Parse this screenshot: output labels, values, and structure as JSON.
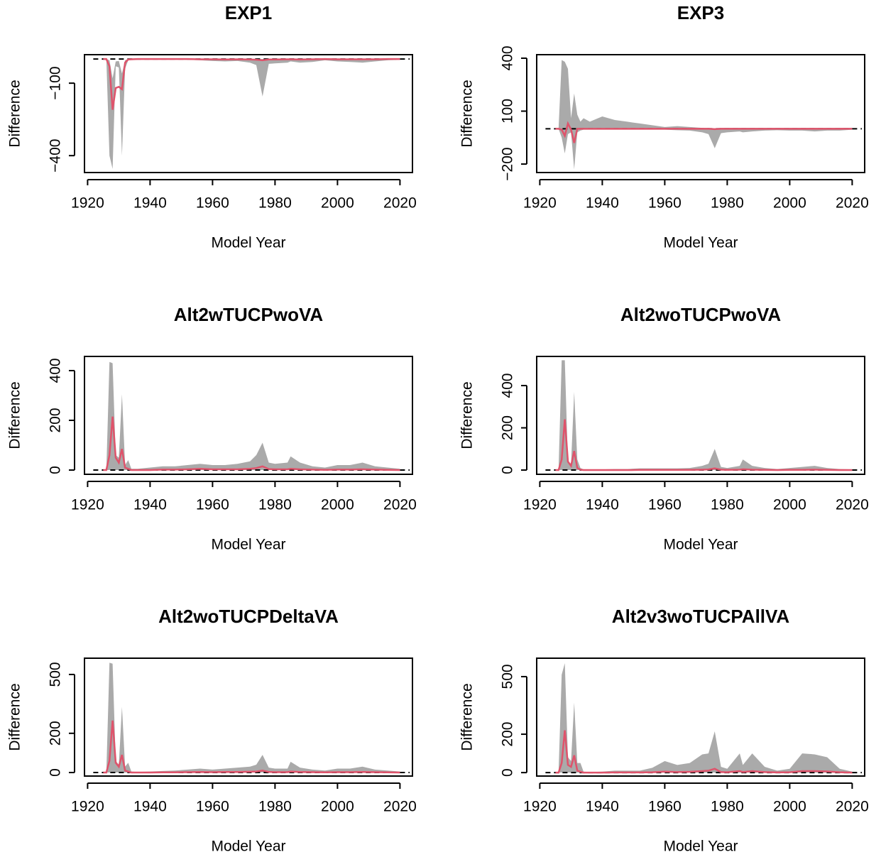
{
  "chart_data": [
    {
      "type": "line",
      "title": "EXP1",
      "x_label": "Model Year",
      "y_label": "Difference",
      "xlim": [
        1919,
        2024
      ],
      "xticks": [
        1920,
        1940,
        1960,
        1980,
        2000,
        2020
      ],
      "ylim": [
        -470,
        18
      ],
      "yticks": [
        {
          "value": -100,
          "label": "−100"
        },
        {
          "value": -400,
          "label": "−400"
        }
      ],
      "x": [
        1925,
        1926,
        1927,
        1928,
        1929,
        1930,
        1931,
        1932,
        1933,
        1934,
        1936,
        1940,
        1944,
        1948,
        1952,
        1956,
        1960,
        1964,
        1968,
        1972,
        1974,
        1976,
        1978,
        1980,
        1984,
        1985,
        1988,
        1992,
        1996,
        2000,
        2004,
        2008,
        2012,
        2016,
        2020
      ],
      "band": {
        "color": "#aaaaaa",
        "lower": [
          0,
          0,
          -400,
          -455,
          -30,
          -35,
          -400,
          -40,
          -5,
          -2,
          -1,
          -1,
          -2,
          -2,
          -3,
          -5,
          -8,
          -10,
          -8,
          -15,
          -25,
          -155,
          -20,
          -18,
          -15,
          -10,
          -15,
          -12,
          -5,
          -10,
          -12,
          -15,
          -10,
          -5,
          -3
        ],
        "upper": [
          0,
          0,
          -5,
          -80,
          -10,
          -8,
          -60,
          -5,
          0,
          0,
          0,
          0,
          0,
          0,
          0,
          0,
          0,
          0,
          0,
          0,
          0,
          0,
          0,
          0,
          0,
          0,
          0,
          0,
          0,
          0,
          0,
          0,
          0,
          0,
          0
        ]
      },
      "line": {
        "color": "#df536b",
        "values": [
          0,
          0,
          -30,
          -210,
          -120,
          -115,
          -125,
          -15,
          -2,
          -1,
          0,
          0,
          0,
          0,
          0,
          -1,
          -1,
          -2,
          -1,
          -2,
          -3,
          -5,
          -2,
          -2,
          -1,
          -1,
          -2,
          -1,
          0,
          -1,
          -1,
          -1,
          -1,
          0,
          0
        ]
      },
      "hline": 0
    },
    {
      "type": "line",
      "title": "EXP3",
      "x_label": "Model Year",
      "y_label": "Difference",
      "xlim": [
        1919,
        2024
      ],
      "xticks": [
        1920,
        1940,
        1960,
        1980,
        2000,
        2020
      ],
      "ylim": [
        -248,
        420
      ],
      "yticks": [
        400,
        100,
        {
          "value": -200,
          "label": "−200"
        }
      ],
      "x": [
        1925,
        1926,
        1927,
        1928,
        1929,
        1930,
        1931,
        1932,
        1933,
        1934,
        1936,
        1940,
        1944,
        1948,
        1952,
        1956,
        1960,
        1964,
        1968,
        1972,
        1974,
        1976,
        1978,
        1980,
        1984,
        1985,
        1988,
        1992,
        1996,
        2000,
        2004,
        2008,
        2012,
        2016,
        2020
      ],
      "band": {
        "color": "#aaaaaa",
        "lower": [
          0,
          0,
          -50,
          -140,
          -30,
          -20,
          -230,
          -20,
          -10,
          -5,
          -5,
          -5,
          -5,
          -5,
          -5,
          -5,
          -5,
          -8,
          -10,
          -20,
          -30,
          -110,
          -25,
          -20,
          -15,
          -20,
          -15,
          -10,
          -8,
          -10,
          -10,
          -15,
          -10,
          -10,
          -5
        ],
        "upper": [
          0,
          0,
          390,
          380,
          340,
          60,
          200,
          80,
          40,
          60,
          40,
          70,
          50,
          40,
          30,
          20,
          10,
          15,
          10,
          5,
          5,
          0,
          5,
          5,
          5,
          5,
          5,
          5,
          5,
          5,
          5,
          5,
          5,
          5,
          5
        ]
      },
      "line": {
        "color": "#df536b",
        "values": [
          0,
          0,
          -5,
          -40,
          30,
          -5,
          -80,
          0,
          0,
          0,
          0,
          0,
          0,
          0,
          0,
          0,
          0,
          0,
          0,
          0,
          0,
          -2,
          0,
          0,
          0,
          0,
          0,
          0,
          0,
          0,
          0,
          0,
          0,
          0,
          0
        ]
      },
      "hline": 0
    },
    {
      "type": "line",
      "title": "Alt2wTUCPwoVA",
      "x_label": "Model Year",
      "y_label": "Difference",
      "xlim": [
        1919,
        2024
      ],
      "xticks": [
        1920,
        1940,
        1960,
        1980,
        2000,
        2020
      ],
      "ylim": [
        -17,
        457
      ],
      "yticks": [
        0,
        200,
        400
      ],
      "x": [
        1925,
        1926,
        1927,
        1928,
        1929,
        1930,
        1931,
        1932,
        1933,
        1934,
        1936,
        1940,
        1944,
        1948,
        1952,
        1956,
        1960,
        1964,
        1968,
        1972,
        1974,
        1976,
        1978,
        1980,
        1984,
        1985,
        1988,
        1992,
        1996,
        2000,
        2004,
        2008,
        2012,
        2016,
        2020
      ],
      "band": {
        "color": "#aaaaaa",
        "lower": [
          0,
          0,
          0,
          0,
          0,
          0,
          0,
          0,
          0,
          0,
          0,
          0,
          0,
          0,
          0,
          0,
          0,
          0,
          0,
          0,
          0,
          0,
          0,
          0,
          0,
          0,
          0,
          0,
          0,
          0,
          0,
          0,
          0,
          0,
          0
        ],
        "upper": [
          0,
          0,
          435,
          430,
          60,
          50,
          305,
          20,
          40,
          5,
          5,
          10,
          15,
          15,
          20,
          25,
          20,
          20,
          25,
          35,
          60,
          110,
          30,
          25,
          30,
          55,
          30,
          15,
          10,
          20,
          20,
          30,
          15,
          10,
          5
        ]
      },
      "line": {
        "color": "#df536b",
        "values": [
          0,
          0,
          60,
          215,
          50,
          30,
          85,
          10,
          5,
          0,
          0,
          0,
          2,
          2,
          3,
          5,
          3,
          3,
          3,
          5,
          8,
          15,
          4,
          3,
          3,
          5,
          3,
          2,
          1,
          2,
          2,
          3,
          2,
          1,
          0
        ]
      },
      "hline": 0
    },
    {
      "type": "line",
      "title": "Alt2woTUCPwoVA",
      "x_label": "Model Year",
      "y_label": "Difference",
      "xlim": [
        1919,
        2024
      ],
      "xticks": [
        1920,
        1940,
        1960,
        1980,
        2000,
        2020
      ],
      "ylim": [
        -20,
        538
      ],
      "yticks": [
        0,
        200,
        400
      ],
      "x": [
        1925,
        1926,
        1927,
        1928,
        1929,
        1930,
        1931,
        1932,
        1933,
        1934,
        1936,
        1940,
        1944,
        1948,
        1952,
        1956,
        1960,
        1964,
        1968,
        1972,
        1974,
        1976,
        1978,
        1980,
        1984,
        1985,
        1988,
        1992,
        1996,
        2000,
        2004,
        2008,
        2012,
        2016,
        2020
      ],
      "band": {
        "color": "#aaaaaa",
        "lower": [
          0,
          0,
          0,
          0,
          0,
          0,
          0,
          0,
          0,
          0,
          0,
          0,
          0,
          0,
          0,
          0,
          0,
          0,
          0,
          0,
          0,
          0,
          0,
          0,
          0,
          0,
          0,
          0,
          0,
          0,
          0,
          0,
          0,
          0,
          0
        ],
        "upper": [
          0,
          0,
          520,
          520,
          40,
          30,
          370,
          50,
          10,
          3,
          3,
          3,
          5,
          5,
          8,
          8,
          8,
          8,
          10,
          20,
          30,
          100,
          15,
          10,
          20,
          50,
          20,
          10,
          5,
          10,
          15,
          20,
          10,
          5,
          3
        ]
      },
      "line": {
        "color": "#df536b",
        "values": [
          0,
          0,
          50,
          240,
          40,
          20,
          90,
          10,
          2,
          0,
          0,
          0,
          0,
          0,
          1,
          1,
          1,
          1,
          1,
          2,
          3,
          8,
          2,
          1,
          2,
          4,
          2,
          1,
          0,
          1,
          1,
          2,
          1,
          0,
          0
        ]
      },
      "hline": 0
    },
    {
      "type": "line",
      "title": "Alt2woTUCPDeltaVA",
      "x_label": "Model Year",
      "y_label": "Difference",
      "xlim": [
        1919,
        2024
      ],
      "xticks": [
        1920,
        1940,
        1960,
        1980,
        2000,
        2020
      ],
      "ylim": [
        -18,
        583
      ],
      "yticks": [
        0,
        200,
        500
      ],
      "x": [
        1925,
        1926,
        1927,
        1928,
        1929,
        1930,
        1931,
        1932,
        1933,
        1934,
        1936,
        1940,
        1944,
        1948,
        1952,
        1956,
        1960,
        1964,
        1968,
        1972,
        1974,
        1976,
        1978,
        1980,
        1984,
        1985,
        1988,
        1992,
        1996,
        2000,
        2004,
        2008,
        2012,
        2016,
        2020
      ],
      "band": {
        "color": "#aaaaaa",
        "lower": [
          0,
          0,
          0,
          0,
          0,
          0,
          0,
          0,
          0,
          0,
          0,
          0,
          0,
          0,
          0,
          0,
          0,
          0,
          0,
          0,
          0,
          0,
          0,
          0,
          0,
          0,
          0,
          0,
          0,
          0,
          0,
          0,
          0,
          0,
          0
        ],
        "upper": [
          0,
          0,
          560,
          555,
          60,
          40,
          335,
          30,
          50,
          5,
          3,
          5,
          8,
          10,
          15,
          20,
          15,
          20,
          25,
          30,
          40,
          90,
          25,
          20,
          20,
          55,
          25,
          15,
          10,
          20,
          20,
          30,
          15,
          10,
          5
        ]
      },
      "line": {
        "color": "#df536b",
        "values": [
          0,
          0,
          60,
          265,
          50,
          30,
          90,
          10,
          5,
          0,
          0,
          0,
          1,
          1,
          2,
          3,
          2,
          3,
          3,
          4,
          5,
          10,
          3,
          2,
          2,
          5,
          3,
          2,
          1,
          2,
          2,
          3,
          2,
          1,
          0
        ]
      },
      "hline": 0
    },
    {
      "type": "line",
      "title": "Alt2v3woTUCPAllVA",
      "x_label": "Model Year",
      "y_label": "Difference",
      "xlim": [
        1919,
        2024
      ],
      "xticks": [
        1920,
        1940,
        1960,
        1980,
        2000,
        2020
      ],
      "ylim": [
        -18,
        596
      ],
      "yticks": [
        0,
        200,
        500
      ],
      "x": [
        1925,
        1926,
        1927,
        1928,
        1929,
        1930,
        1931,
        1932,
        1933,
        1934,
        1936,
        1940,
        1944,
        1948,
        1952,
        1956,
        1960,
        1964,
        1968,
        1972,
        1974,
        1976,
        1978,
        1980,
        1984,
        1985,
        1988,
        1992,
        1996,
        2000,
        2004,
        2008,
        2012,
        2016,
        2020
      ],
      "band": {
        "color": "#aaaaaa",
        "lower": [
          0,
          0,
          0,
          0,
          0,
          0,
          0,
          0,
          0,
          0,
          0,
          0,
          0,
          0,
          0,
          0,
          0,
          0,
          0,
          0,
          0,
          0,
          0,
          0,
          0,
          0,
          0,
          0,
          0,
          0,
          0,
          0,
          0,
          0,
          0
        ],
        "upper": [
          0,
          0,
          510,
          570,
          80,
          60,
          365,
          50,
          50,
          5,
          3,
          5,
          10,
          10,
          10,
          25,
          60,
          40,
          50,
          95,
          100,
          215,
          30,
          20,
          100,
          40,
          100,
          30,
          10,
          20,
          100,
          95,
          80,
          20,
          5
        ]
      },
      "line": {
        "color": "#df536b",
        "values": [
          0,
          0,
          50,
          220,
          40,
          30,
          90,
          10,
          5,
          0,
          0,
          0,
          1,
          1,
          1,
          2,
          5,
          3,
          4,
          8,
          10,
          20,
          3,
          2,
          8,
          3,
          8,
          3,
          1,
          2,
          8,
          8,
          6,
          2,
          0
        ]
      },
      "hline": 0
    }
  ]
}
